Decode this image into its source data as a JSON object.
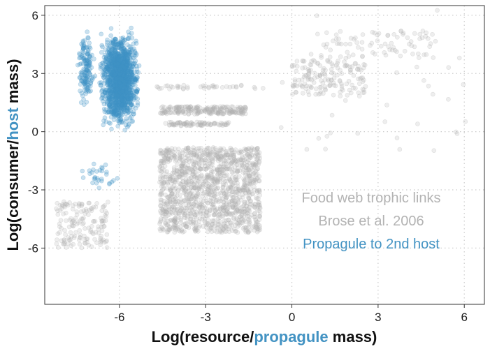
{
  "chart_data": {
    "type": "scatter",
    "xlim": [
      -8.6,
      6.7
    ],
    "ylim": [
      -8.9,
      6.5
    ],
    "x_ticks": [
      -6,
      -3,
      0,
      3,
      6
    ],
    "y_ticks": [
      6,
      3,
      0,
      -3,
      -6
    ],
    "x_tick_labels": [
      "-6",
      "-3",
      "0",
      "3",
      "6"
    ],
    "y_tick_labels": [
      "6",
      "3",
      "0",
      "-3",
      "-6"
    ],
    "grid": "dotted",
    "xlabel": {
      "pre": "Log(resource/",
      "highlight": "propagule",
      "post": " mass)"
    },
    "ylabel": {
      "pre": "Log(consumer/",
      "highlight": "host",
      "post": " mass)"
    },
    "annotations": [
      "Food web trophic links",
      "Brose et al. 2006",
      "Propagule to 2nd host"
    ],
    "colors": {
      "food_web": "#b3b3b3",
      "propagule": "#3f93c7",
      "highlight": "#4393c3"
    },
    "series": [
      {
        "color": "#b3b3b3",
        "clusters": [
          {
            "x_range": [
              -4.6,
              -1.1
            ],
            "y_range": [
              -5.2,
              -0.8
            ],
            "n": 1400
          },
          {
            "x_range": [
              -4.6,
              -1.6
            ],
            "y_range": [
              0.9,
              1.3
            ],
            "n": 220
          },
          {
            "x_range": [
              -4.4,
              -2.2
            ],
            "y_range": [
              0.3,
              0.5
            ],
            "n": 80
          },
          {
            "x_range": [
              -4.8,
              -1.0
            ],
            "y_range": [
              2.2,
              2.4
            ],
            "n": 40
          },
          {
            "x_range": [
              -8.2,
              -6.4
            ],
            "y_range": [
              -6.0,
              -3.6
            ],
            "n": 160
          },
          {
            "x_range": [
              0.0,
              2.6
            ],
            "y_range": [
              1.8,
              3.7
            ],
            "n": 160
          },
          {
            "x_range": [
              1.0,
              5.0
            ],
            "y_range": [
              3.8,
              5.2
            ],
            "n": 80
          },
          {
            "x_range": [
              -0.5,
              6.5
            ],
            "y_range": [
              -1.0,
              6.3
            ],
            "n": 40
          }
        ]
      },
      {
        "color": "#3f93c7",
        "clusters": [
          {
            "x_range": [
              -6.8,
              -5.2
            ],
            "y_range": [
              -0.3,
              5.7
            ],
            "n": 1500
          },
          {
            "x_range": [
              -7.5,
              -6.8
            ],
            "y_range": [
              0.8,
              5.7
            ],
            "n": 150
          },
          {
            "x_range": [
              -7.5,
              -5.8
            ],
            "y_range": [
              -3.2,
              -1.5
            ],
            "n": 30
          }
        ]
      }
    ]
  }
}
